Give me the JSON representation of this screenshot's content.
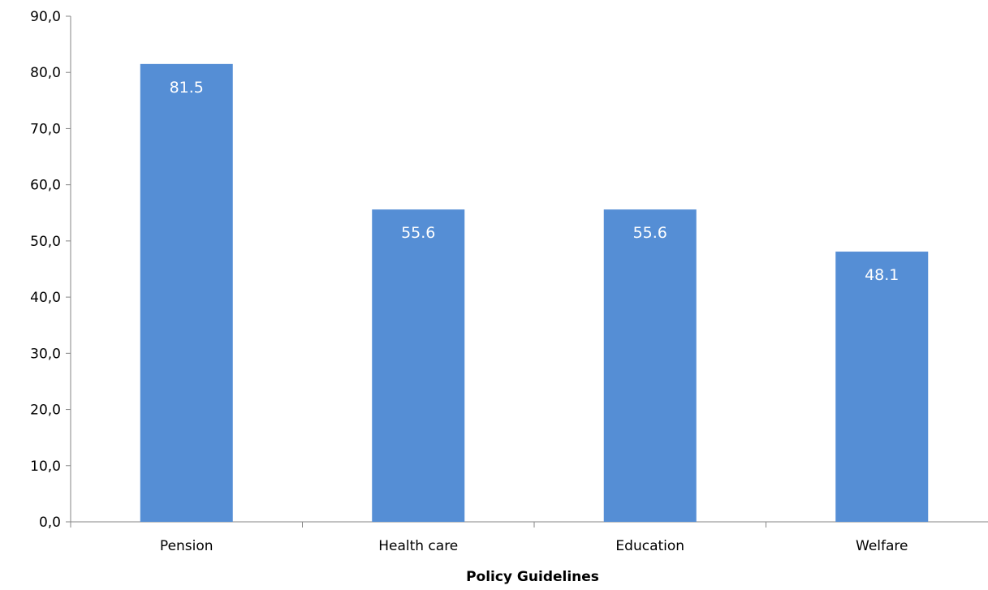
{
  "chart_data": {
    "type": "bar",
    "title": "",
    "xlabel": "Policy Guidelines",
    "ylabel": "",
    "categories": [
      "Pension",
      "Health care",
      "Education",
      "Welfare"
    ],
    "values": [
      81.5,
      55.6,
      55.6,
      48.1
    ],
    "data_labels": [
      "81.5",
      "55.6",
      "55.6",
      "48.1"
    ],
    "ylim": [
      0,
      90
    ],
    "y_ticks": [
      0,
      10,
      20,
      30,
      40,
      50,
      60,
      70,
      80,
      90
    ],
    "y_tick_labels": [
      "0,0",
      "10,0",
      "20,0",
      "30,0",
      "40,0",
      "50,0",
      "60,0",
      "70,0",
      "80,0",
      "90,0"
    ],
    "grid": false,
    "legend": "none",
    "colors": {
      "bar": "#558ed5",
      "data_label": "#ffffff",
      "axis": "#868686",
      "text": "#000000"
    }
  }
}
